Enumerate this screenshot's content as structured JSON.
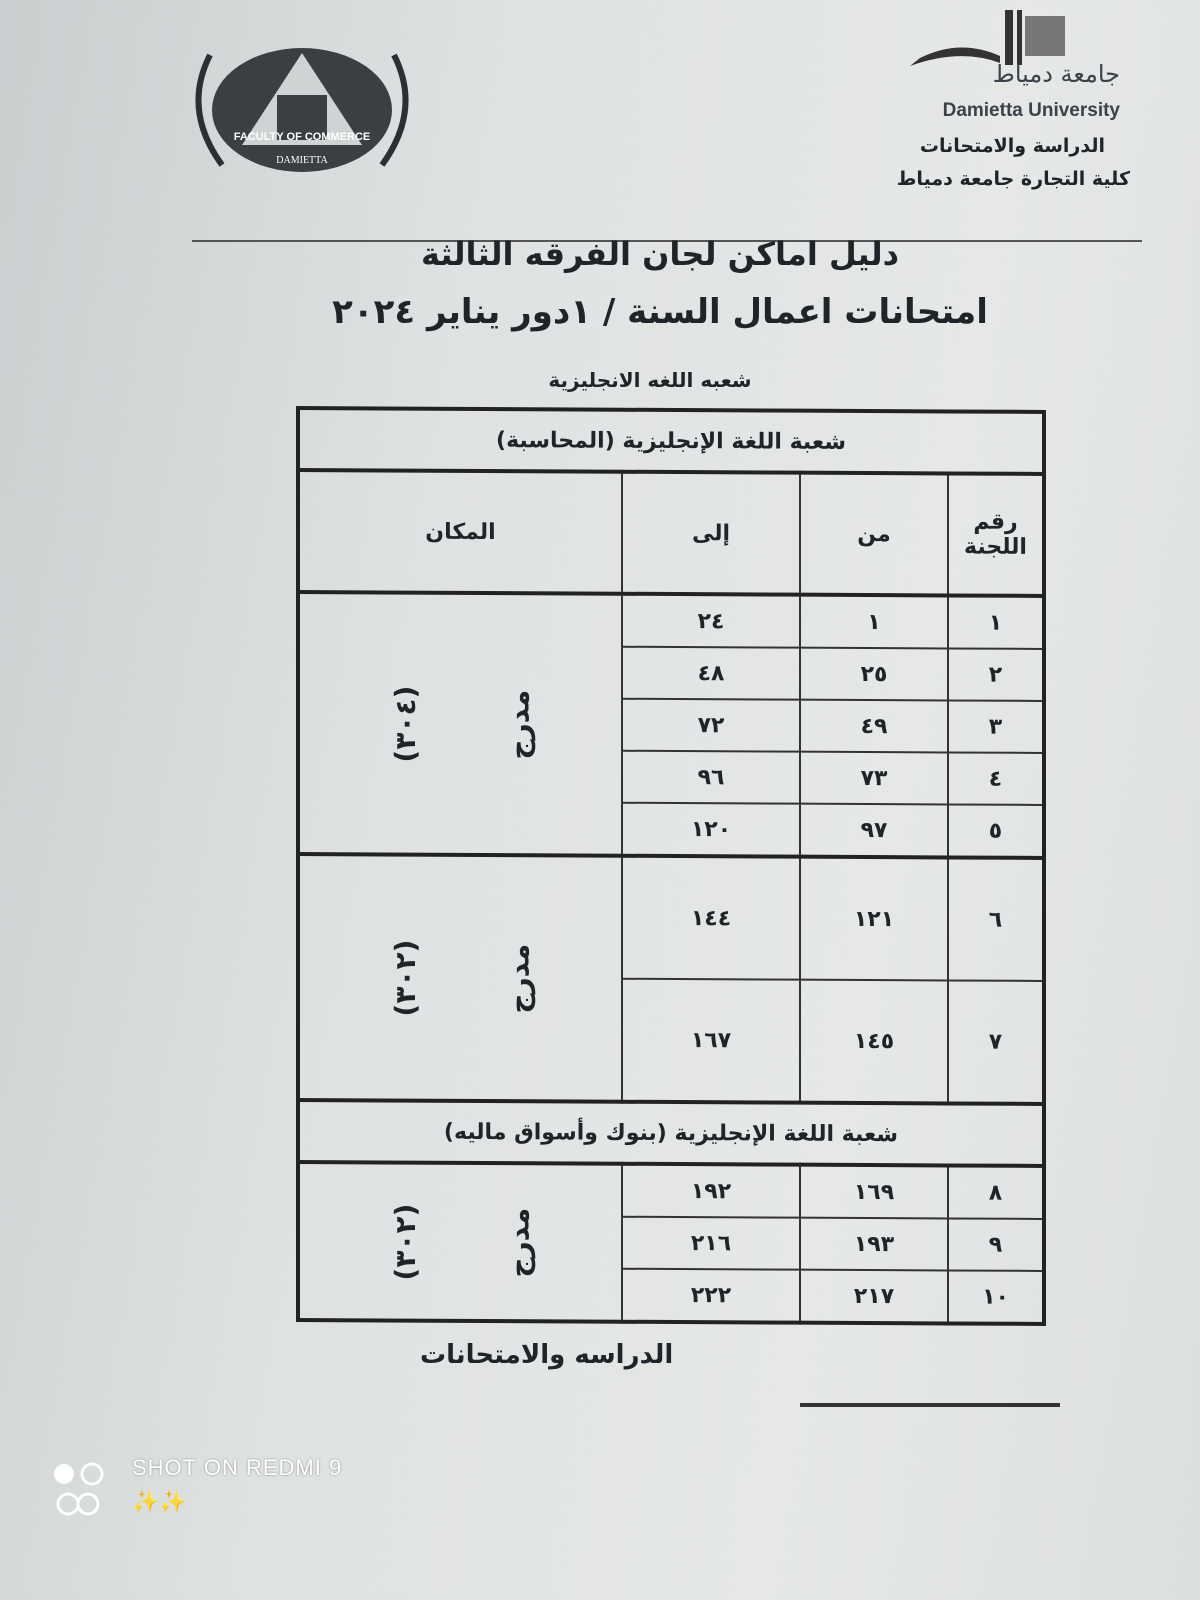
{
  "header": {
    "faculty_logo": {
      "top": "FACULTY OF COMMERCE",
      "bottom": "DAMIETTA"
    },
    "university_logo_ar": "جامعة دمياط",
    "university_en": "Damietta University",
    "dept": "الدراسة والامتحانات",
    "college": "كلية التجارة جامعة دمياط"
  },
  "title": {
    "line1": "دليل اماكن لجان الفرقه الثالثة",
    "line2": "امتحانات اعمال السنة / ١دور يناير ٢٠٢٤",
    "line3": "شعبه اللغه الانجليزية"
  },
  "table": {
    "headers": {
      "committee": "رقم اللجنة",
      "from": "من",
      "to": "إلى",
      "place": "المكان"
    },
    "sections": [
      {
        "title": "شعبة اللغة الإنجليزية (المحاسبة)",
        "groups": [
          {
            "place": "مدرج",
            "room": "(٣٠٤)",
            "rows": [
              {
                "no": "١",
                "from": "١",
                "to": "٢٤"
              },
              {
                "no": "٢",
                "from": "٢٥",
                "to": "٤٨"
              },
              {
                "no": "٣",
                "from": "٤٩",
                "to": "٧٢"
              },
              {
                "no": "٤",
                "from": "٧٣",
                "to": "٩٦"
              },
              {
                "no": "٥",
                "from": "٩٧",
                "to": "١٢٠"
              }
            ]
          },
          {
            "place": "مدرج",
            "room": "(٣٠٢)",
            "rows": [
              {
                "no": "٦",
                "from": "١٢١",
                "to": "١٤٤"
              },
              {
                "no": "٧",
                "from": "١٤٥",
                "to": "١٦٧"
              }
            ]
          }
        ]
      },
      {
        "title": "شعبة اللغة الإنجليزية (بنوك وأسواق ماليه)",
        "groups": [
          {
            "place": "مدرج",
            "room": "(٣٠٢)",
            "rows": [
              {
                "no": "٨",
                "from": "١٦٩",
                "to": "١٩٢"
              },
              {
                "no": "٩",
                "from": "١٩٣",
                "to": "٢١٦"
              },
              {
                "no": "١٠",
                "from": "٢١٧",
                "to": "٢٢٢"
              }
            ]
          }
        ]
      }
    ]
  },
  "footer": {
    "signature_label": "الدراسه والامتحانات"
  },
  "watermark": {
    "text": "SHOT ON REDMI 9",
    "sparkles": "✨✨"
  }
}
